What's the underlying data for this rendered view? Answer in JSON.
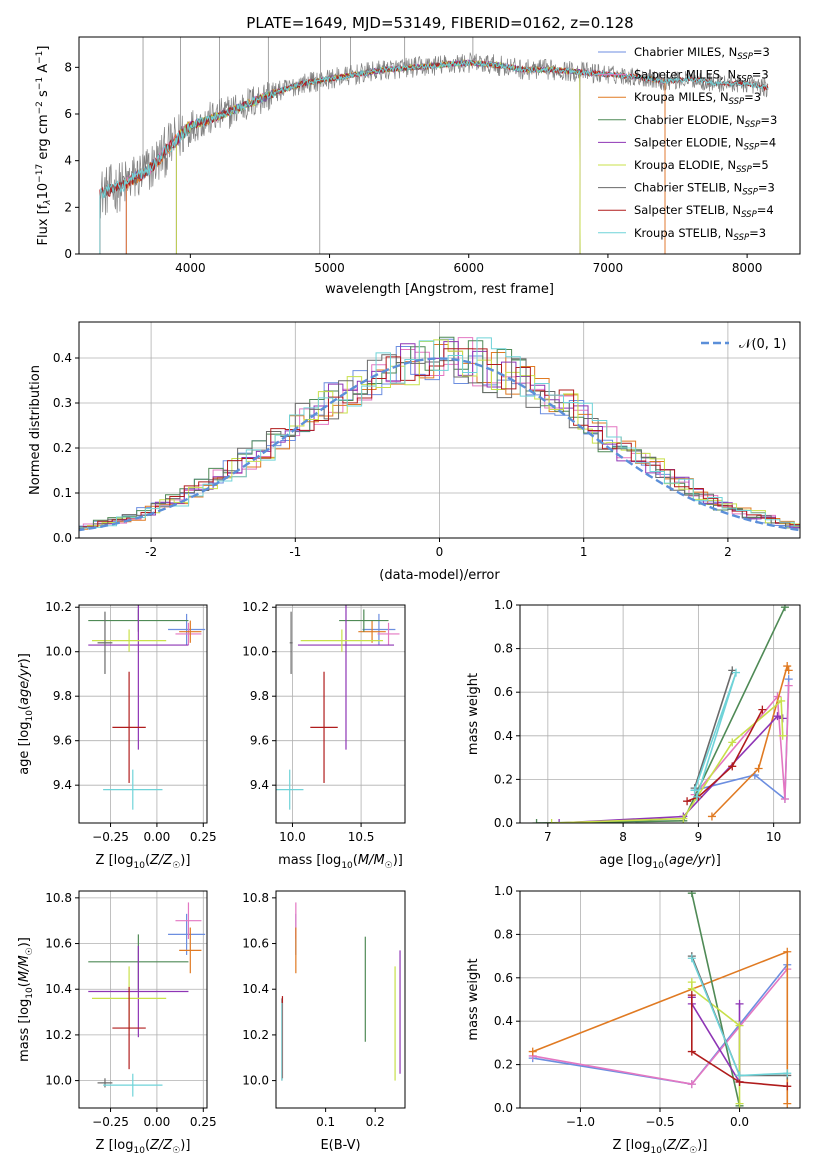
{
  "figure": {
    "title": "PLATE=1649, MJD=53149, FIBERID=0162, z=0.128"
  },
  "colors": {
    "Chabrier MILES": "#6c8ee0",
    "Salpeter MILES": "#e377c2",
    "Kroupa MILES": "#e07a22",
    "Chabrier ELODIE": "#4f8a56",
    "Salpeter ELODIE": "#8e35b5",
    "Kroupa ELODIE": "#c8e04a",
    "Chabrier STELIB": "#6a6a6a",
    "Salpeter STELIB": "#b01c1c",
    "Kroupa STELIB": "#6fd3d8",
    "data": "#808080",
    "normal": "#5b8fd9"
  },
  "panels": {
    "spectrum": {
      "xlabel": "wavelength [Angstrom, rest frame]",
      "ylabel_parts": [
        "Flux [f",
        "λ",
        "10",
        "−17",
        " erg cm",
        "−2",
        " s",
        "−1",
        " A",
        "−1",
        "]"
      ]
    },
    "residuals": {
      "xlabel": "(data-model)/error",
      "ylabel": "Normed distribution",
      "legend": "𝒩(0, 1)"
    },
    "age_Z": {
      "xlabel": "Z [log10(Z/Z☉)]",
      "ylabel": "age  [log10(age/yr)]"
    },
    "age_mass": {
      "xlabel": "mass [log10(M/M☉)]"
    },
    "weight_age": {
      "xlabel": "age  [log10(age/yr)]",
      "ylabel": "mass weight"
    },
    "mass_Z": {
      "xlabel": "Z [log10(Z/Z☉)]",
      "ylabel": "mass [log10(M/M☉)]"
    },
    "mass_ebv": {
      "xlabel": "E(B-V)"
    },
    "weight_Z": {
      "xlabel": "Z [log10(Z/Z☉)]",
      "ylabel": "mass weight"
    }
  },
  "chart_data": [
    {
      "id": "spectrum",
      "type": "line",
      "xlabel": "wavelength [Angstrom, rest frame]",
      "ylabel": "Flux [fλ10−17 erg cm−2 s−1 A−1]",
      "xlim": [
        3200,
        8380
      ],
      "ylim": [
        0,
        9.3
      ],
      "xticks": [
        4000,
        5000,
        6000,
        7000,
        8000
      ],
      "yticks": [
        0,
        2,
        4,
        6,
        8
      ],
      "legend_position": "top-right",
      "legend": [
        {
          "model": "Chabrier MILES",
          "nssp": "3"
        },
        {
          "model": "Salpeter MILES",
          "nssp": "3"
        },
        {
          "model": "Kroupa MILES",
          "nssp": "3"
        },
        {
          "model": "Chabrier ELODIE",
          "nssp": "3"
        },
        {
          "model": "Salpeter ELODIE",
          "nssp": "4"
        },
        {
          "model": "Kroupa ELODIE",
          "nssp": "5"
        },
        {
          "model": "Chabrier STELIB",
          "nssp": "3"
        },
        {
          "model": "Salpeter STELIB",
          "nssp": "4"
        },
        {
          "model": "Kroupa STELIB",
          "nssp": "3"
        }
      ],
      "continuum": {
        "x": [
          3350,
          3500,
          3700,
          3900,
          4000,
          4200,
          4400,
          4600,
          4800,
          5000,
          5200,
          5400,
          5600,
          5800,
          6000,
          6200,
          6400,
          6600,
          6800,
          7000,
          7200,
          7400,
          7600,
          7800,
          8000,
          8150
        ],
        "y": [
          2.6,
          2.9,
          3.6,
          4.9,
          5.5,
          5.9,
          6.4,
          6.9,
          7.3,
          7.5,
          7.7,
          7.9,
          8.0,
          8.1,
          8.2,
          8.1,
          7.9,
          7.9,
          7.8,
          7.7,
          7.6,
          7.4,
          7.5,
          7.3,
          7.3,
          7.1
        ]
      }
    },
    {
      "id": "residuals",
      "type": "histogram",
      "xlabel": "(data-model)/error",
      "ylabel": "Normed distribution",
      "xlim": [
        -2.5,
        2.5
      ],
      "ylim": [
        0,
        0.48
      ],
      "xticks": [
        -2,
        -1,
        0,
        1,
        2
      ],
      "yticks": [
        0.0,
        0.1,
        0.2,
        0.3,
        0.4
      ],
      "grid": true,
      "bin_width": 0.1,
      "legend": "𝒩(0, 1)",
      "legend_position": "top-right"
    },
    {
      "id": "age_Z",
      "type": "scatter",
      "xlabel": "Z [log10(Z/Z☉)]",
      "ylabel": "age  [log10(age/yr)]",
      "xlim": [
        -0.42,
        0.27
      ],
      "ylim": [
        9.23,
        10.21
      ],
      "xticks": [
        -0.25,
        0,
        0.25
      ],
      "xticklabels": [
        "−0.25",
        "0.00",
        "0.25"
      ],
      "yticks": [
        9.4,
        9.6,
        9.8,
        10.0,
        10.2
      ],
      "grid": true,
      "points": [
        {
          "model": "Chabrier MILES",
          "x": 0.16,
          "y": 10.1,
          "xerr": 0.1,
          "yerr": 0.07
        },
        {
          "model": "Salpeter MILES",
          "x": 0.17,
          "y": 10.08,
          "xerr": 0.07,
          "yerr": 0.05
        },
        {
          "model": "Kroupa MILES",
          "x": 0.18,
          "y": 10.09,
          "xerr": 0.06,
          "yerr": 0.05
        },
        {
          "model": "Chabrier ELODIE",
          "x": -0.1,
          "y": 10.14,
          "xerr": 0.27,
          "yerr": 0.05
        },
        {
          "model": "Salpeter ELODIE",
          "x": -0.1,
          "y": 10.03,
          "xerr": 0.27,
          "yerr": 0.47
        },
        {
          "model": "Kroupa ELODIE",
          "x": -0.15,
          "y": 10.05,
          "xerr": 0.2,
          "yerr": 0.05
        },
        {
          "model": "Chabrier STELIB",
          "x": -0.28,
          "y": 10.04,
          "xerr": 0.04,
          "yerr": 0.14
        },
        {
          "model": "Salpeter STELIB",
          "x": -0.15,
          "y": 9.66,
          "xerr": 0.09,
          "yerr": 0.25
        },
        {
          "model": "Kroupa STELIB",
          "x": -0.13,
          "y": 9.38,
          "xerr": 0.16,
          "yerr": 0.09
        }
      ]
    },
    {
      "id": "age_mass",
      "type": "scatter",
      "xlabel": "mass [log10(M/M☉)]",
      "xlim": [
        9.88,
        10.82
      ],
      "ylim": [
        9.23,
        10.21
      ],
      "xticks": [
        10.0,
        10.5
      ],
      "xticklabels": [
        "10.0",
        "10.5"
      ],
      "yticks": [
        9.4,
        9.6,
        9.8,
        10.0,
        10.2
      ],
      "grid": true,
      "points": [
        {
          "model": "Chabrier MILES",
          "x": 10.63,
          "y": 10.1,
          "xerr": 0.12,
          "yerr": 0.07
        },
        {
          "model": "Salpeter MILES",
          "x": 10.7,
          "y": 10.08,
          "xerr": 0.08,
          "yerr": 0.05
        },
        {
          "model": "Kroupa MILES",
          "x": 10.58,
          "y": 10.09,
          "xerr": 0.1,
          "yerr": 0.05
        },
        {
          "model": "Chabrier ELODIE",
          "x": 10.52,
          "y": 10.14,
          "xerr": 0.18,
          "yerr": 0.05
        },
        {
          "model": "Salpeter ELODIE",
          "x": 10.39,
          "y": 10.03,
          "xerr": 0.35,
          "yerr": 0.47
        },
        {
          "model": "Kroupa ELODIE",
          "x": 10.36,
          "y": 10.05,
          "xerr": 0.3,
          "yerr": 0.05
        },
        {
          "model": "Chabrier STELIB",
          "x": 9.99,
          "y": 10.04,
          "xerr": 0.01,
          "yerr": 0.14
        },
        {
          "model": "Salpeter STELIB",
          "x": 10.23,
          "y": 9.66,
          "xerr": 0.1,
          "yerr": 0.25
        },
        {
          "model": "Kroupa STELIB",
          "x": 9.98,
          "y": 9.38,
          "xerr": 0.1,
          "yerr": 0.09
        }
      ]
    },
    {
      "id": "weight_age",
      "type": "line",
      "xlabel": "age  [log10(age/yr)]",
      "ylabel": "mass weight",
      "xlim": [
        6.63,
        10.35
      ],
      "ylim": [
        0,
        1.0
      ],
      "xticks": [
        7,
        8,
        9,
        10
      ],
      "yticks": [
        0.0,
        0.2,
        0.4,
        0.6,
        0.8,
        1.0
      ],
      "grid": true,
      "series": [
        {
          "model": "Chabrier MILES",
          "x": [
            8.95,
            9.75,
            10.15,
            10.2
          ],
          "y": [
            0.15,
            0.22,
            0.11,
            0.66
          ]
        },
        {
          "model": "Salpeter MILES",
          "x": [
            8.95,
            10.05,
            10.15,
            10.2
          ],
          "y": [
            0.13,
            0.58,
            0.11,
            0.63
          ]
        },
        {
          "model": "Kroupa MILES",
          "x": [
            9.18,
            9.8,
            10.18,
            10.2
          ],
          "y": [
            0.03,
            0.25,
            0.72,
            0.7
          ]
        },
        {
          "model": "Chabrier ELODIE",
          "x": [
            6.85,
            8.8,
            10.15
          ],
          "y": [
            0.0,
            0.01,
            0.99
          ]
        },
        {
          "model": "Salpeter ELODIE",
          "x": [
            7.15,
            8.8,
            10.05,
            10.12
          ],
          "y": [
            0.0,
            0.03,
            0.49,
            0.48
          ]
        },
        {
          "model": "Kroupa ELODIE",
          "x": [
            7.05,
            8.8,
            9.45,
            10.1,
            10.12
          ],
          "y": [
            0.0,
            0.02,
            0.37,
            0.56,
            0.4
          ]
        },
        {
          "model": "Chabrier STELIB",
          "x": [
            8.95,
            9.45
          ],
          "y": [
            0.16,
            0.7
          ]
        },
        {
          "model": "Salpeter STELIB",
          "x": [
            8.85,
            9.0,
            9.45,
            9.85
          ],
          "y": [
            0.1,
            0.12,
            0.26,
            0.52
          ]
        },
        {
          "model": "Kroupa STELIB",
          "x": [
            8.95,
            9.5,
            8.98
          ],
          "y": [
            0.15,
            0.69,
            0.12
          ]
        }
      ]
    },
    {
      "id": "mass_Z",
      "type": "scatter",
      "xlabel": "Z [log10(Z/Z☉)]",
      "ylabel": "mass [log10(M/M☉)]",
      "xlim": [
        -0.42,
        0.27
      ],
      "ylim": [
        9.88,
        10.83
      ],
      "xticks": [
        -0.25,
        0,
        0.25
      ],
      "xticklabels": [
        "−0.25",
        "0.00",
        "0.25"
      ],
      "yticks": [
        10.0,
        10.2,
        10.4,
        10.6,
        10.8
      ],
      "grid": true,
      "points": [
        {
          "model": "Chabrier MILES",
          "x": 0.16,
          "y": 10.64,
          "xerr": 0.1,
          "yerr": 0.09
        },
        {
          "model": "Salpeter MILES",
          "x": 0.17,
          "y": 10.7,
          "xerr": 0.07,
          "yerr": 0.08
        },
        {
          "model": "Kroupa MILES",
          "x": 0.18,
          "y": 10.57,
          "xerr": 0.06,
          "yerr": 0.1
        },
        {
          "model": "Chabrier ELODIE",
          "x": -0.1,
          "y": 10.52,
          "xerr": 0.27,
          "yerr": 0.12
        },
        {
          "model": "Salpeter ELODIE",
          "x": -0.1,
          "y": 10.39,
          "xerr": 0.27,
          "yerr": 0.2
        },
        {
          "model": "Kroupa ELODIE",
          "x": -0.15,
          "y": 10.36,
          "xerr": 0.2,
          "yerr": 0.14
        },
        {
          "model": "Chabrier STELIB",
          "x": -0.28,
          "y": 9.99,
          "xerr": 0.04,
          "yerr": 0.02
        },
        {
          "model": "Salpeter STELIB",
          "x": -0.15,
          "y": 10.23,
          "xerr": 0.09,
          "yerr": 0.18
        },
        {
          "model": "Kroupa STELIB",
          "x": -0.13,
          "y": 9.98,
          "xerr": 0.16,
          "yerr": 0.05
        }
      ]
    },
    {
      "id": "mass_ebv",
      "type": "scatter",
      "xlabel": "E(B-V)",
      "xlim": [
        0.0,
        0.26
      ],
      "ylim": [
        9.88,
        10.83
      ],
      "xticks": [
        0.1,
        0.2
      ],
      "xticklabels": [
        "0.1",
        "0.2"
      ],
      "yticks": [
        10.0,
        10.2,
        10.4,
        10.6,
        10.8
      ],
      "points": [
        {
          "model": "Chabrier MILES",
          "x": 0.04,
          "y": 10.64,
          "yerr": 0.09
        },
        {
          "model": "Salpeter MILES",
          "x": 0.04,
          "y": 10.7,
          "yerr": 0.08
        },
        {
          "model": "Kroupa MILES",
          "x": 0.04,
          "y": 10.57,
          "yerr": 0.1
        },
        {
          "model": "Chabrier ELODIE",
          "x": 0.18,
          "y": 10.4,
          "yerr": 0.23
        },
        {
          "model": "Salpeter ELODIE",
          "x": 0.25,
          "y": 10.3,
          "yerr": 0.27
        },
        {
          "model": "Kroupa ELODIE",
          "x": 0.24,
          "y": 10.25,
          "yerr": 0.25
        },
        {
          "model": "Chabrier STELIB",
          "x": 0.012,
          "y": 10.18,
          "yerr": 0.18
        },
        {
          "model": "Salpeter STELIB",
          "x": 0.013,
          "y": 10.19,
          "yerr": 0.18
        },
        {
          "model": "Kroupa STELIB",
          "x": 0.012,
          "y": 10.17,
          "yerr": 0.17
        }
      ]
    },
    {
      "id": "weight_Z",
      "type": "line",
      "xlabel": "Z [log10(Z/Z☉)]",
      "ylabel": "mass weight",
      "xlim": [
        -1.38,
        0.38
      ],
      "ylim": [
        0,
        1.0
      ],
      "xticks": [
        -1.0,
        -0.5,
        0.0
      ],
      "xticklabels": [
        "−1.0",
        "−0.5",
        "0.0"
      ],
      "yticks": [
        0.0,
        0.2,
        0.4,
        0.6,
        0.8,
        1.0
      ],
      "grid": true,
      "series": [
        {
          "model": "Chabrier MILES",
          "x": [
            -1.3,
            -0.3,
            0.3
          ],
          "y": [
            0.23,
            0.11,
            0.66
          ]
        },
        {
          "model": "Salpeter MILES",
          "x": [
            -1.3,
            -0.3,
            0.3
          ],
          "y": [
            0.24,
            0.11,
            0.64
          ]
        },
        {
          "model": "Kroupa MILES",
          "x": [
            -1.3,
            0.3,
            0.3
          ],
          "y": [
            0.26,
            0.72,
            0.02
          ]
        },
        {
          "model": "Chabrier ELODIE",
          "x": [
            -0.3,
            0.0
          ],
          "y": [
            0.99,
            0.01
          ]
        },
        {
          "model": "Salpeter ELODIE",
          "x": [
            -0.3,
            -0.3,
            0.0,
            0.0
          ],
          "y": [
            0.51,
            0.48,
            0.12,
            0.48
          ]
        },
        {
          "model": "Kroupa ELODIE",
          "x": [
            -0.3,
            -0.3,
            0.0,
            0.0
          ],
          "y": [
            0.58,
            0.55,
            0.38,
            0.02
          ]
        },
        {
          "model": "Chabrier STELIB",
          "x": [
            -0.3,
            0.0,
            0.3
          ],
          "y": [
            0.7,
            0.15,
            0.15
          ]
        },
        {
          "model": "Salpeter STELIB",
          "x": [
            -0.3,
            -0.3,
            0.0,
            0.3
          ],
          "y": [
            0.52,
            0.26,
            0.12,
            0.1
          ]
        },
        {
          "model": "Kroupa STELIB",
          "x": [
            -0.3,
            0.0,
            0.3
          ],
          "y": [
            0.69,
            0.15,
            0.16
          ]
        }
      ]
    }
  ]
}
